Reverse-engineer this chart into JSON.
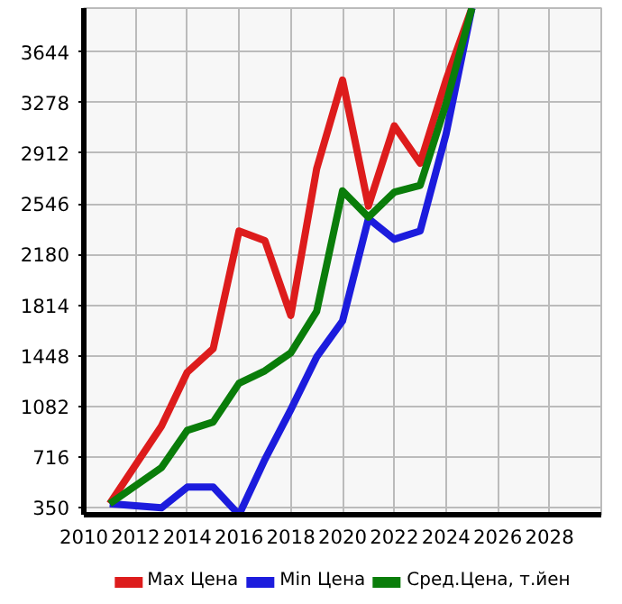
{
  "chart_data": {
    "type": "line",
    "xlim": [
      2010,
      2030
    ],
    "ylim": [
      300,
      3960
    ],
    "xticks": [
      2010,
      2012,
      2014,
      2016,
      2018,
      2020,
      2022,
      2024,
      2026,
      2028
    ],
    "yticks": [
      350,
      716,
      1082,
      1448,
      1814,
      2180,
      2546,
      2912,
      3278,
      3644
    ],
    "x": [
      2011,
      2013,
      2014,
      2015,
      2016,
      2017,
      2018,
      2019,
      2020,
      2021,
      2022,
      2023,
      2024,
      2025
    ],
    "series": [
      {
        "name": "Max Цена",
        "color": "#dd1c1c",
        "values": [
          380,
          940,
          1330,
          1500,
          2350,
          2280,
          1740,
          2800,
          3440,
          2530,
          3110,
          2840,
          3440,
          3960
        ]
      },
      {
        "name": "Min Цена",
        "color": "#1c1cdd",
        "values": [
          380,
          350,
          500,
          500,
          300,
          700,
          1060,
          1440,
          1700,
          2440,
          2290,
          2350,
          3050,
          3960
        ]
      },
      {
        "name": "Сред.Цена, т.йен",
        "color": "#0a7d0a",
        "values": [
          380,
          640,
          910,
          970,
          1250,
          1340,
          1470,
          1770,
          2640,
          2450,
          2630,
          2680,
          3270,
          3960
        ]
      }
    ],
    "grid": true,
    "legend": "bottom"
  }
}
